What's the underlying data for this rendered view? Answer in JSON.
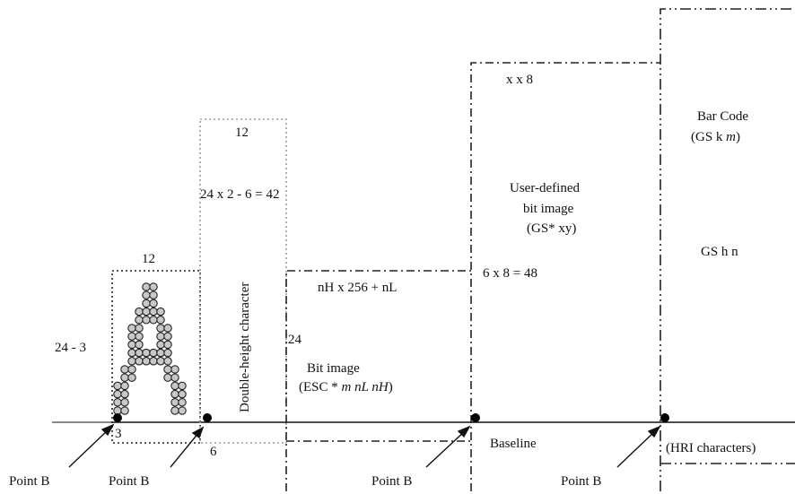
{
  "labels": {
    "char_width": "12",
    "char_height": "24 - 3",
    "char_descent": "3",
    "dh_width": "12",
    "dh_height": "24 x 2 - 6 = 42",
    "dh_descent": "6",
    "dh_vertical": "Double-height character",
    "bit_width": "nH x 256 + nL",
    "bit_height": "24",
    "bit_name": "Bit image",
    "bit_cmd_pre": "(ESC * ",
    "bit_cmd_args": "m nL nH",
    "bit_cmd_post": ")",
    "ud_width": "x x 8",
    "ud_height": "6 x 8 = 48",
    "ud_name_1": "User-defined",
    "ud_name_2": "bit image",
    "ud_cmd": "(GS* xy)",
    "bc_name": "Bar Code",
    "bc_cmd_pre": "(GS k ",
    "bc_cmd_arg": "m",
    "bc_cmd_post": ")",
    "bc_height": "GS h n",
    "hri": "(HRI characters)",
    "baseline": "Baseline",
    "point_b": "Point B"
  },
  "colors": {
    "line": "#222222",
    "dot": "#000000",
    "glyph_fill": "#c8c8c8",
    "grey_dotted": "#9a9a9a"
  }
}
